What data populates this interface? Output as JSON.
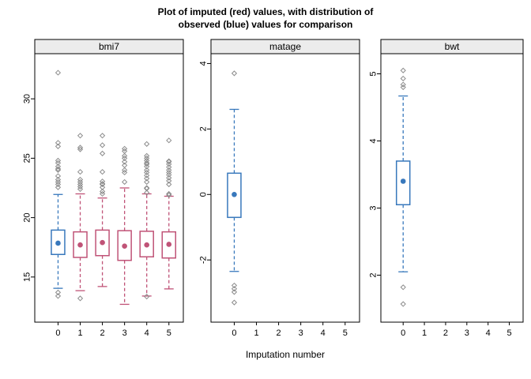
{
  "title": {
    "line1": "Plot of imputed (red) values, with distribution of",
    "line2": "observed (blue) values for comparison"
  },
  "xlabel": "Imputation number",
  "colors": {
    "observed_blue": "#3878BC",
    "imputed_red": "#C05377",
    "outlier_gray": "#8C8C8C",
    "strip_bg": "#ECECEC",
    "panel_border": "#000000",
    "text": "#000000"
  },
  "chart_data": {
    "type": "boxplot",
    "title": "Plot of imputed (red) values, with distribution of observed (blue) values for comparison",
    "xlabel": "Imputation number",
    "x_ticks": [
      0,
      1,
      2,
      3,
      4,
      5
    ],
    "xlim": [
      -1.05,
      5.65
    ],
    "legend": {
      "observed": "blue",
      "imputed": "red"
    },
    "panels": [
      {
        "name": "bmi7",
        "ylim": [
          11.2,
          33.8
        ],
        "yticks": [
          15,
          20,
          25,
          30
        ],
        "boxes": [
          {
            "x": 0,
            "group": "observed",
            "whisker_low": 14.05,
            "q1": 16.9,
            "median": 17.85,
            "q3": 18.95,
            "whisker_high": 21.95,
            "outliers": [
              32.2,
              26.3,
              26.0,
              24.8,
              24.6,
              24.3,
              24.1,
              24.0,
              23.5,
              23.2,
              23.0,
              22.8,
              22.55,
              13.7,
              13.4
            ]
          },
          {
            "x": 1,
            "group": "imputed",
            "whisker_low": 13.85,
            "q1": 16.65,
            "median": 17.7,
            "q3": 18.8,
            "whisker_high": 22.0,
            "outliers": [
              26.9,
              25.9,
              25.75,
              23.85,
              23.2,
              23.0,
              22.8,
              22.6,
              22.4,
              13.2
            ]
          },
          {
            "x": 2,
            "group": "imputed",
            "whisker_low": 14.2,
            "q1": 16.8,
            "median": 17.9,
            "q3": 18.95,
            "whisker_high": 21.65,
            "outliers": [
              26.9,
              26.1,
              25.4,
              23.85,
              23.05,
              22.85,
              22.8,
              22.55,
              22.2,
              22.0
            ]
          },
          {
            "x": 3,
            "group": "imputed",
            "whisker_low": 12.7,
            "q1": 16.4,
            "median": 17.6,
            "q3": 18.9,
            "whisker_high": 22.5,
            "outliers": [
              25.8,
              25.6,
              25.2,
              25.0,
              24.7,
              24.4,
              24.0,
              23.8,
              23.0
            ]
          },
          {
            "x": 4,
            "group": "imputed",
            "whisker_low": 13.4,
            "q1": 16.7,
            "median": 17.7,
            "q3": 18.85,
            "whisker_high": 22.0,
            "outliers": [
              26.2,
              25.2,
              25.0,
              24.8,
              24.6,
              24.5,
              24.3,
              24.0,
              23.8,
              23.55,
              23.3,
              23.0,
              22.5,
              22.45,
              22.1,
              13.35
            ]
          },
          {
            "x": 5,
            "group": "imputed",
            "whisker_low": 14.0,
            "q1": 16.6,
            "median": 17.75,
            "q3": 18.8,
            "whisker_high": 21.8,
            "outliers": [
              26.5,
              24.75,
              24.7,
              24.5,
              24.25,
              24.0,
              23.8,
              23.6,
              23.35,
              23.1,
              22.8,
              22.0,
              21.9
            ]
          }
        ]
      },
      {
        "name": "matage",
        "ylim": [
          -3.9,
          4.3
        ],
        "yticks": [
          -2,
          0,
          2,
          4
        ],
        "boxes": [
          {
            "x": 0,
            "group": "observed",
            "whisker_low": -2.35,
            "q1": -0.7,
            "median": 0.0,
            "q3": 0.65,
            "whisker_high": 2.6,
            "outliers": [
              3.7,
              -2.78,
              -2.88,
              -2.98,
              -3.3
            ]
          }
        ]
      },
      {
        "name": "bwt",
        "ylim": [
          1.3,
          5.3
        ],
        "yticks": [
          2,
          3,
          4,
          5
        ],
        "boxes": [
          {
            "x": 0,
            "group": "observed",
            "whisker_low": 2.05,
            "q1": 3.05,
            "median": 3.4,
            "q3": 3.7,
            "whisker_high": 4.67,
            "outliers": [
              5.05,
              4.93,
              4.84,
              4.8,
              1.82,
              1.57
            ]
          }
        ]
      }
    ]
  }
}
